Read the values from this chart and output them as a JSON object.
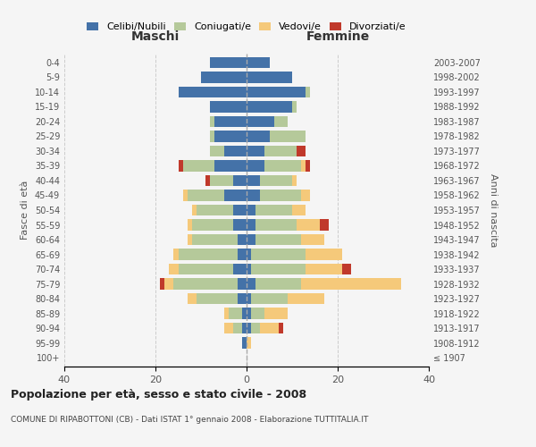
{
  "age_groups": [
    "100+",
    "95-99",
    "90-94",
    "85-89",
    "80-84",
    "75-79",
    "70-74",
    "65-69",
    "60-64",
    "55-59",
    "50-54",
    "45-49",
    "40-44",
    "35-39",
    "30-34",
    "25-29",
    "20-24",
    "15-19",
    "10-14",
    "5-9",
    "0-4"
  ],
  "birth_years": [
    "≤ 1907",
    "1908-1912",
    "1913-1917",
    "1918-1922",
    "1923-1927",
    "1928-1932",
    "1933-1937",
    "1938-1942",
    "1943-1947",
    "1948-1952",
    "1953-1957",
    "1958-1962",
    "1963-1967",
    "1968-1972",
    "1973-1977",
    "1978-1982",
    "1983-1987",
    "1988-1992",
    "1993-1997",
    "1998-2002",
    "2003-2007"
  ],
  "males": {
    "celibe": [
      0,
      1,
      1,
      1,
      2,
      2,
      3,
      2,
      2,
      3,
      3,
      5,
      3,
      7,
      5,
      7,
      7,
      8,
      15,
      10,
      8
    ],
    "coniugato": [
      0,
      0,
      2,
      3,
      9,
      14,
      12,
      13,
      10,
      9,
      8,
      8,
      5,
      7,
      3,
      1,
      1,
      0,
      0,
      0,
      0
    ],
    "vedovo": [
      0,
      0,
      2,
      1,
      2,
      2,
      2,
      1,
      1,
      1,
      1,
      1,
      0,
      0,
      0,
      0,
      0,
      0,
      0,
      0,
      0
    ],
    "divorziato": [
      0,
      0,
      0,
      0,
      0,
      1,
      0,
      0,
      0,
      0,
      0,
      0,
      1,
      1,
      0,
      0,
      0,
      0,
      0,
      0,
      0
    ]
  },
  "females": {
    "nubile": [
      0,
      0,
      1,
      1,
      1,
      2,
      1,
      1,
      2,
      2,
      2,
      3,
      3,
      4,
      4,
      5,
      6,
      10,
      13,
      10,
      5
    ],
    "coniugata": [
      0,
      0,
      2,
      3,
      8,
      10,
      12,
      12,
      10,
      9,
      8,
      9,
      7,
      8,
      7,
      8,
      3,
      1,
      1,
      0,
      0
    ],
    "vedova": [
      0,
      1,
      4,
      5,
      8,
      22,
      8,
      8,
      5,
      5,
      3,
      2,
      1,
      1,
      0,
      0,
      0,
      0,
      0,
      0,
      0
    ],
    "divorziata": [
      0,
      0,
      1,
      0,
      0,
      0,
      2,
      0,
      0,
      2,
      0,
      0,
      0,
      1,
      2,
      0,
      0,
      0,
      0,
      0,
      0
    ]
  },
  "colors": {
    "celibe": "#4472a8",
    "coniugato": "#b5c99a",
    "vedovo": "#f5c97a",
    "divorziato": "#c0392b"
  },
  "legend_labels": [
    "Celibi/Nubili",
    "Coniugati/e",
    "Vedovi/e",
    "Divorziati/e"
  ],
  "xlim": [
    -40,
    40
  ],
  "xlabel_left": "Maschi",
  "xlabel_right": "Femmine",
  "ylabel_left": "Fasce di età",
  "ylabel_right": "Anni di nascita",
  "title": "Popolazione per età, sesso e stato civile - 2008",
  "subtitle": "COMUNE DI RIPABOTTONI (CB) - Dati ISTAT 1° gennaio 2008 - Elaborazione TUTTITALIA.IT",
  "bg_color": "#f5f5f5",
  "grid_color": "#cccccc"
}
